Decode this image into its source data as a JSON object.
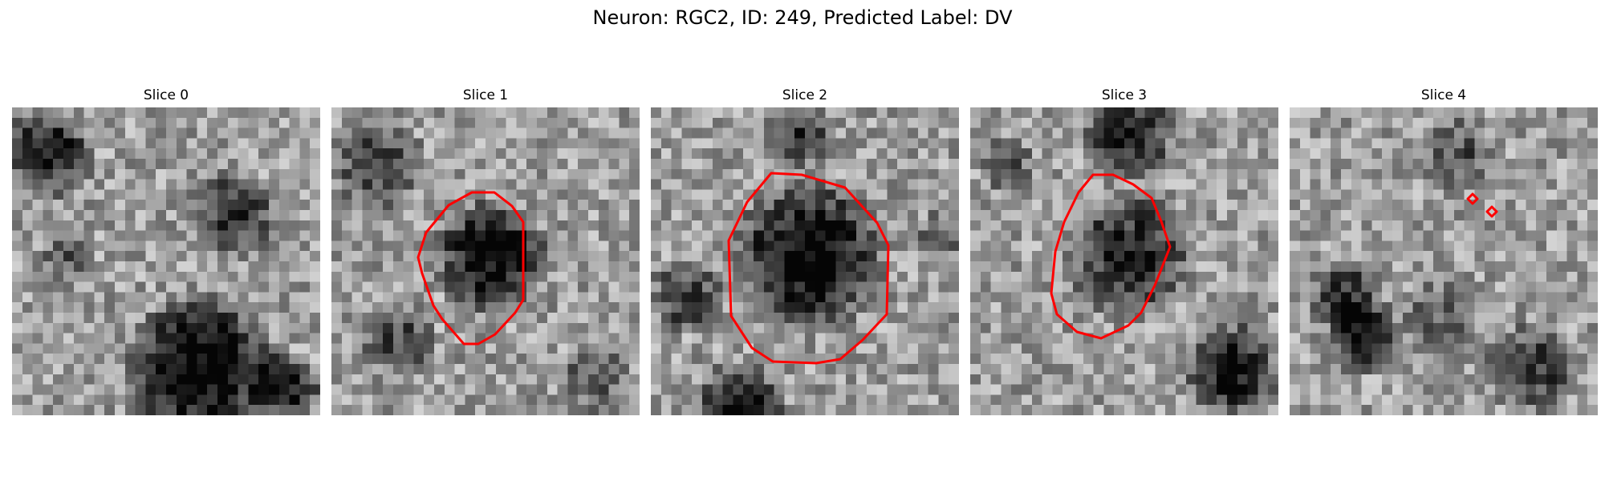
{
  "figure": {
    "title": "Neuron: RGC2, ID: 249, Predicted Label: DV",
    "roi_color": "#ff0000",
    "colormap": "grayscale"
  },
  "slices": [
    {
      "title": "Slice 0",
      "has_roi": false
    },
    {
      "title": "Slice 1",
      "has_roi": true
    },
    {
      "title": "Slice 2",
      "has_roi": true
    },
    {
      "title": "Slice 3",
      "has_roi": true
    },
    {
      "title": "Slice 4",
      "has_roi": true
    }
  ]
}
